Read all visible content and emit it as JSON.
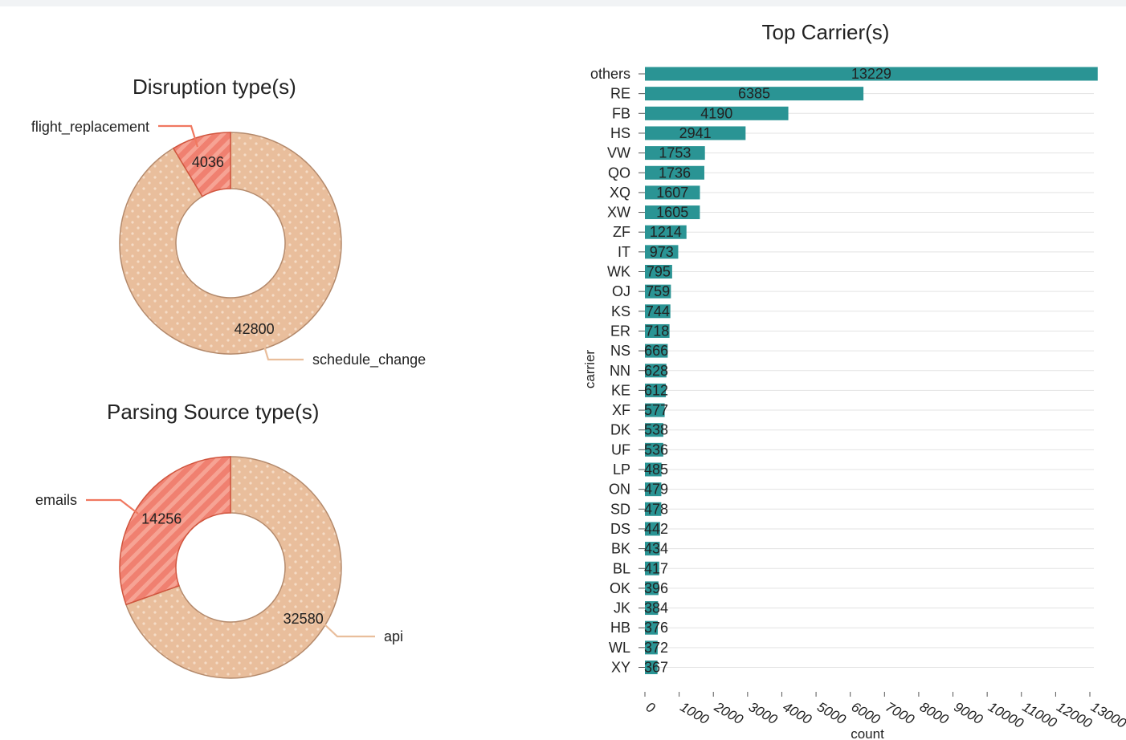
{
  "chart_data": [
    {
      "type": "pie",
      "variant": "donut",
      "title": "Disruption type(s)",
      "slices": [
        {
          "label": "flight_replacement",
          "value": 4036,
          "color": "#f08070"
        },
        {
          "label": "schedule_change",
          "value": 42800,
          "color": "#e9be9c"
        }
      ]
    },
    {
      "type": "pie",
      "variant": "donut",
      "title": "Parsing Source type(s)",
      "slices": [
        {
          "label": "emails",
          "value": 14256,
          "color": "#f08070"
        },
        {
          "label": "api",
          "value": 32580,
          "color": "#e9be9c"
        }
      ]
    },
    {
      "type": "bar",
      "orientation": "horizontal",
      "title": "Top Carrier(s)",
      "xlabel": "count",
      "ylabel": "carrier",
      "xlim": [
        0,
        13000
      ],
      "xticks": [
        0,
        1000,
        2000,
        3000,
        4000,
        5000,
        6000,
        7000,
        8000,
        9000,
        10000,
        11000,
        12000,
        13000
      ],
      "grid": true,
      "color": "#2a9494",
      "categories": [
        "others",
        "RE",
        "FB",
        "HS",
        "VW",
        "QO",
        "XQ",
        "XW",
        "ZF",
        "IT",
        "WK",
        "OJ",
        "KS",
        "ER",
        "NS",
        "NN",
        "KE",
        "XF",
        "DK",
        "UF",
        "LP",
        "ON",
        "SD",
        "DS",
        "BK",
        "BL",
        "OK",
        "JK",
        "HB",
        "WL",
        "XY"
      ],
      "values": [
        13229,
        6385,
        4190,
        2941,
        1753,
        1736,
        1607,
        1605,
        1214,
        973,
        795,
        759,
        744,
        718,
        666,
        628,
        612,
        577,
        538,
        536,
        485,
        479,
        478,
        442,
        434,
        417,
        396,
        384,
        376,
        372,
        367
      ]
    }
  ]
}
